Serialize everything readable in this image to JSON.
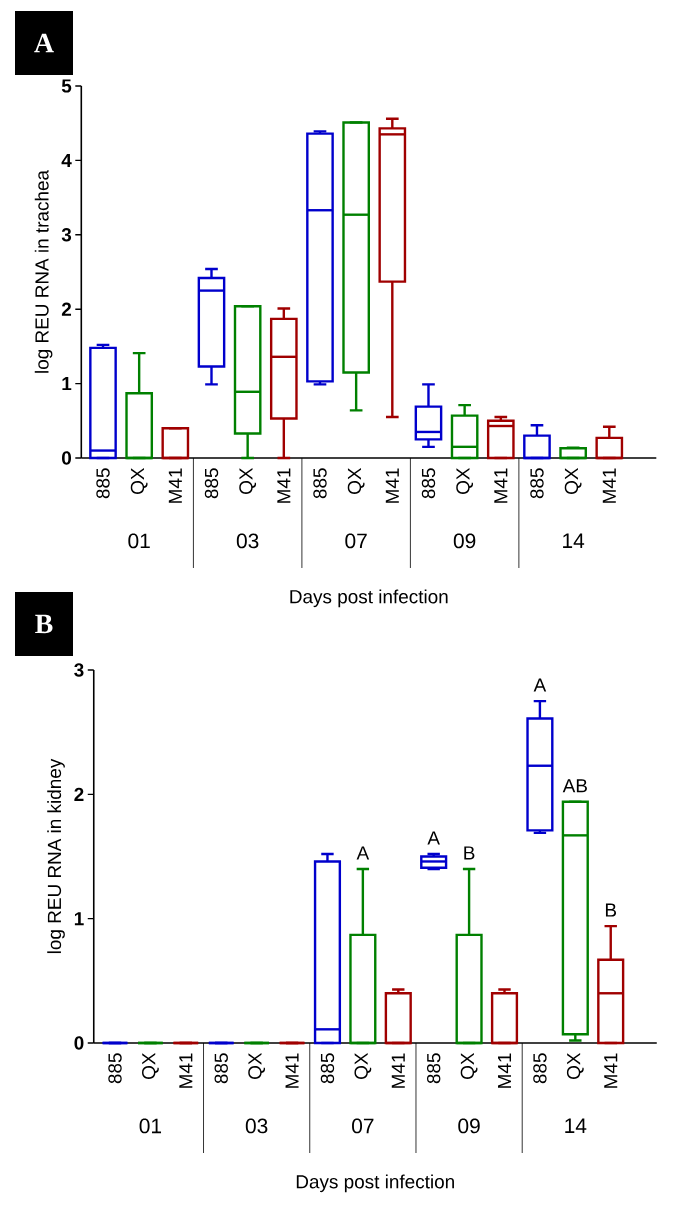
{
  "chart_data": [
    {
      "type": "box",
      "title": "A",
      "legend": "bottom",
      "categories": [
        "01",
        "03",
        "07",
        "09",
        "14"
      ],
      "xlabel": "Days post infection",
      "ylabel": "log REU RNA in trachea",
      "ylim": [
        0,
        5
      ],
      "yticks": [
        0,
        1,
        2,
        3,
        4,
        5
      ],
      "series": [
        {
          "name": "885",
          "color": "#0000cc",
          "boxes": [
            {
              "low": 0,
              "q1": 0,
              "median": 0.1,
              "q3": 1.48,
              "high": 1.52
            },
            {
              "low": 0.99,
              "q1": 1.23,
              "median": 2.25,
              "q3": 2.42,
              "high": 2.54
            },
            {
              "low": 0.99,
              "q1": 1.03,
              "median": 3.33,
              "q3": 4.36,
              "high": 4.39
            },
            {
              "low": 0.15,
              "q1": 0.25,
              "median": 0.35,
              "q3": 0.69,
              "high": 0.99
            },
            {
              "low": 0,
              "q1": 0,
              "median": 0,
              "q3": 0.3,
              "high": 0.44
            }
          ]
        },
        {
          "name": "QX",
          "color": "#008000",
          "boxes": [
            {
              "low": 0,
              "q1": 0,
              "median": 0,
              "q3": 0.87,
              "high": 1.41
            },
            {
              "low": 0,
              "q1": 0.33,
              "median": 0.89,
              "q3": 2.04,
              "high": 2.04
            },
            {
              "low": 0.64,
              "q1": 1.15,
              "median": 3.27,
              "q3": 4.51,
              "high": 4.51
            },
            {
              "low": 0,
              "q1": 0,
              "median": 0.15,
              "q3": 0.57,
              "high": 0.71
            },
            {
              "low": 0,
              "q1": 0,
              "median": 0,
              "q3": 0.13,
              "high": 0.14
            }
          ]
        },
        {
          "name": "M41",
          "color": "#a00000",
          "boxes": [
            {
              "low": 0,
              "q1": 0,
              "median": 0,
              "q3": 0.4,
              "high": 0.4
            },
            {
              "low": 0,
              "q1": 0.53,
              "median": 1.36,
              "q3": 1.87,
              "high": 2.01
            },
            {
              "low": 0.55,
              "q1": 2.37,
              "median": 4.35,
              "q3": 4.43,
              "high": 4.56
            },
            {
              "low": 0,
              "q1": 0,
              "median": 0.43,
              "q3": 0.5,
              "high": 0.55
            },
            {
              "low": 0,
              "q1": 0,
              "median": 0,
              "q3": 0.27,
              "high": 0.42
            }
          ]
        }
      ]
    },
    {
      "type": "box",
      "title": "B",
      "legend": "bottom",
      "categories": [
        "01",
        "03",
        "07",
        "09",
        "14"
      ],
      "xlabel": "Days post infection",
      "ylabel": "log REU RNA in kidney",
      "ylim": [
        0,
        3
      ],
      "yticks": [
        0,
        1,
        2,
        3
      ],
      "series": [
        {
          "name": "885",
          "color": "#0000cc",
          "value_labels": [
            null,
            null,
            null,
            "A",
            "A"
          ],
          "boxes": [
            {
              "low": 0,
              "q1": 0,
              "median": 0,
              "q3": 0,
              "high": 0
            },
            {
              "low": 0,
              "q1": 0,
              "median": 0,
              "q3": 0,
              "high": 0
            },
            {
              "low": 0,
              "q1": 0,
              "median": 0.11,
              "q3": 1.46,
              "high": 1.52
            },
            {
              "low": 1.4,
              "q1": 1.41,
              "median": 1.46,
              "q3": 1.5,
              "high": 1.52
            },
            {
              "low": 1.69,
              "q1": 1.71,
              "median": 2.23,
              "q3": 2.61,
              "high": 2.75
            }
          ]
        },
        {
          "name": "QX",
          "color": "#008000",
          "value_labels": [
            null,
            null,
            "A",
            "B",
            "AB"
          ],
          "boxes": [
            {
              "low": 0,
              "q1": 0,
              "median": 0,
              "q3": 0,
              "high": 0
            },
            {
              "low": 0,
              "q1": 0,
              "median": 0,
              "q3": 0,
              "high": 0
            },
            {
              "low": 0,
              "q1": 0,
              "median": 0,
              "q3": 0.87,
              "high": 1.4
            },
            {
              "low": 0,
              "q1": 0,
              "median": 0,
              "q3": 0.87,
              "high": 1.4
            },
            {
              "low": 0.02,
              "q1": 0.07,
              "median": 1.67,
              "q3": 1.94,
              "high": 1.94
            }
          ]
        },
        {
          "name": "M41",
          "color": "#a00000",
          "value_labels": [
            null,
            null,
            null,
            null,
            "B"
          ],
          "boxes": [
            {
              "low": 0,
              "q1": 0,
              "median": 0,
              "q3": 0,
              "high": 0
            },
            {
              "low": 0,
              "q1": 0,
              "median": 0,
              "q3": 0,
              "high": 0
            },
            {
              "low": 0,
              "q1": 0,
              "median": 0,
              "q3": 0.4,
              "high": 0.43
            },
            {
              "low": 0,
              "q1": 0,
              "median": 0,
              "q3": 0.4,
              "high": 0.43
            },
            {
              "low": 0,
              "q1": 0,
              "median": 0.4,
              "q3": 0.67,
              "high": 0.94
            }
          ]
        }
      ]
    }
  ]
}
